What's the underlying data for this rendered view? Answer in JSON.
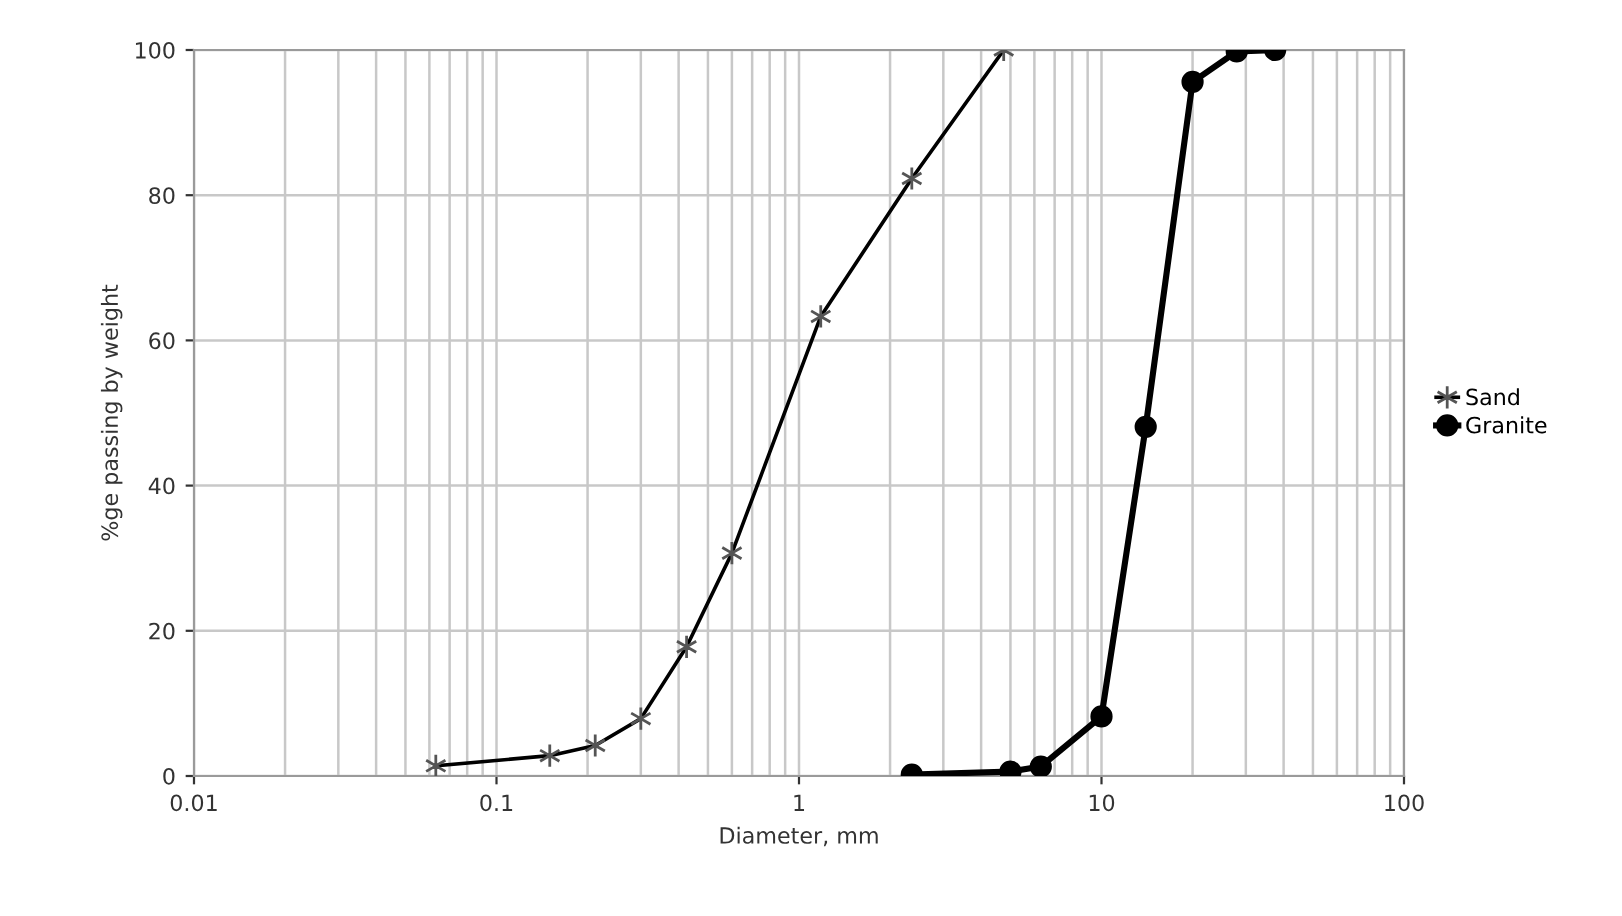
{
  "chart_data": {
    "type": "line",
    "xlabel": "Diameter, mm",
    "ylabel": "%ge passing by weight",
    "log": "x",
    "xlim": [
      0.01,
      100
    ],
    "xticks": [
      0.01,
      0.1,
      1,
      10,
      100
    ],
    "ylim": [
      0,
      100
    ],
    "yticks": [
      0,
      20,
      40,
      60,
      80,
      100
    ],
    "grid": true,
    "legend": "right",
    "series": [
      {
        "name": "Sand",
        "color": "#000000",
        "marker": "cross",
        "x": [
          0.063,
          0.15,
          0.212,
          0.3,
          0.425,
          0.6,
          1.18,
          2.36,
          4.75
        ],
        "values": [
          1.4,
          2.8,
          4.2,
          7.9,
          17.8,
          30.7,
          63.3,
          82.3,
          100
        ]
      },
      {
        "name": "Granite",
        "color": "#000000",
        "marker": "circle",
        "x": [
          2.36,
          5,
          6.3,
          10,
          14,
          20,
          28,
          37.5
        ],
        "values": [
          0.2,
          0.6,
          1.3,
          8.2,
          48.1,
          95.6,
          99.8,
          100
        ]
      }
    ]
  }
}
